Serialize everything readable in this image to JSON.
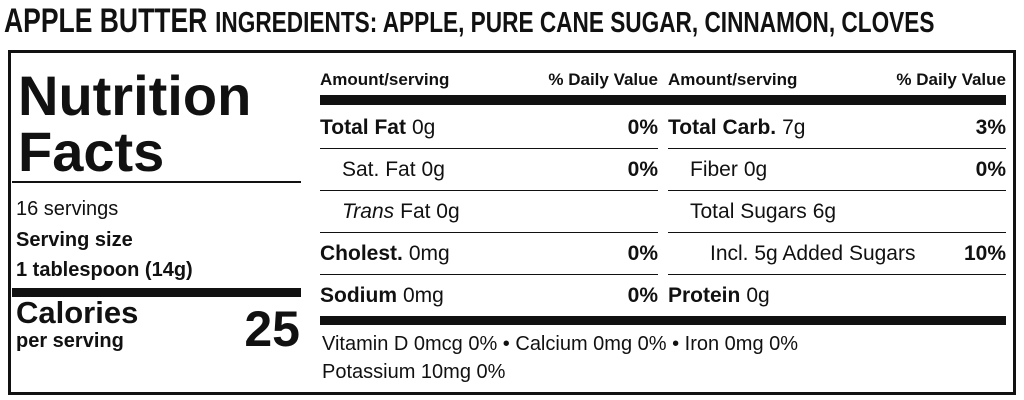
{
  "header": {
    "product": "APPLE BUTTER",
    "ingredients": "INGREDIENTS: APPLE, PURE CANE SUGAR, CINNAMON, CLOVES"
  },
  "label": {
    "title_line1": "Nutrition",
    "title_line2": "Facts",
    "servings": "16 servings",
    "serving_size_label": "Serving size",
    "serving_size": "1 tablespoon (14g)",
    "calories_label": "Calories",
    "calories_sub": "per serving",
    "calories": "25",
    "column_header": {
      "amount": "Amount/serving",
      "daily_value": "% Daily Value"
    },
    "left_rows": [
      {
        "name": "Total Fat",
        "amount": "0g",
        "dv": "0%"
      },
      {
        "name": "Sat. Fat",
        "amount": "0g",
        "dv": "0%"
      },
      {
        "name": "Trans",
        "amount": "Fat 0g"
      },
      {
        "name": "Cholest.",
        "amount": "0mg",
        "dv": "0%"
      },
      {
        "name": "Sodium",
        "amount": "0mg",
        "dv": "0%"
      }
    ],
    "right_rows": [
      {
        "name": "Total Carb.",
        "amount": "7g",
        "dv": "3%"
      },
      {
        "name": "Fiber",
        "amount": "0g",
        "dv": "0%"
      },
      {
        "name": "Total Sugars",
        "amount": "6g"
      },
      {
        "name": "Incl. 5g Added Sugars",
        "dv": "10%"
      },
      {
        "name": "Protein",
        "amount": "0g"
      }
    ],
    "footer": [
      "Vitamin D 0mcg 0% • Calcium 0mg 0% • Iron 0mg 0%",
      "Potassium 10mg 0%"
    ]
  }
}
